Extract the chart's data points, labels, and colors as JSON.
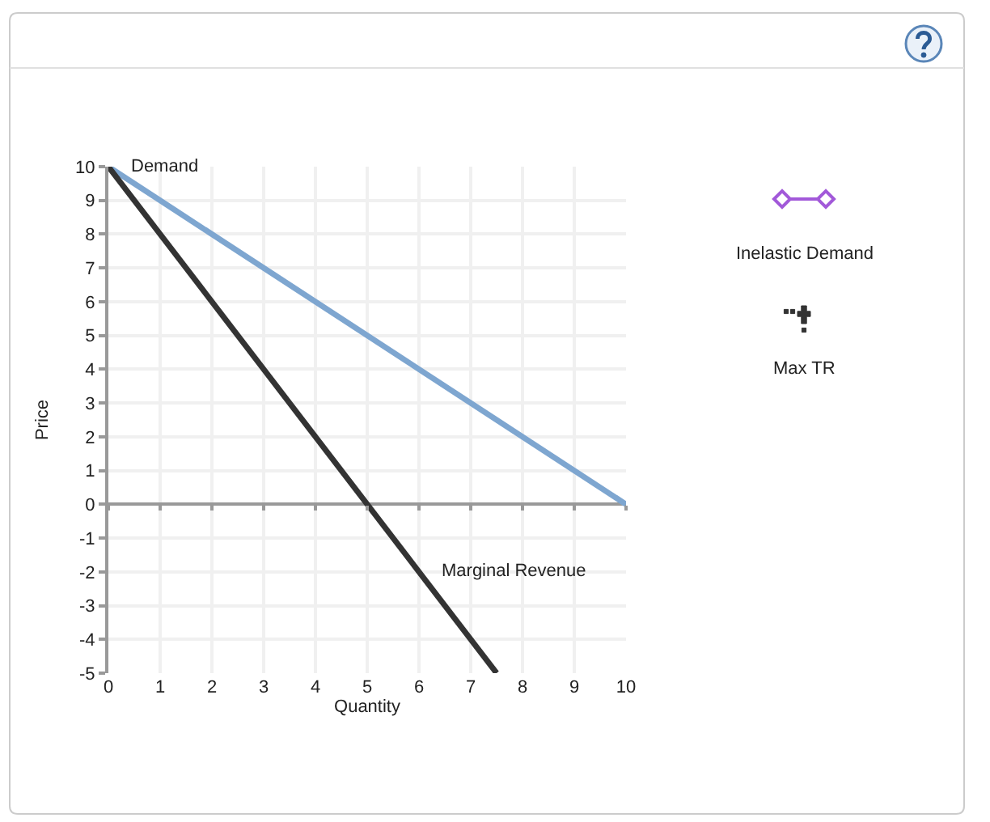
{
  "chart_data": {
    "type": "line",
    "xlabel": "Quantity",
    "ylabel": "Price",
    "series": [
      {
        "name": "Demand",
        "color": "#7ea6d0",
        "x": [
          0,
          10
        ],
        "values": [
          10,
          0
        ]
      },
      {
        "name": "Marginal Revenue",
        "color": "#333333",
        "x": [
          0,
          7.5
        ],
        "values": [
          10,
          -5
        ]
      }
    ],
    "xlim": [
      0,
      10
    ],
    "ylim": [
      -5,
      10
    ],
    "xticks": [
      0,
      1,
      2,
      3,
      4,
      5,
      6,
      7,
      8,
      9,
      10
    ],
    "yticks": [
      -5,
      -4,
      -3,
      -2,
      -1,
      0,
      1,
      2,
      3,
      4,
      5,
      6,
      7,
      8,
      9,
      10
    ],
    "grid": true,
    "line_style": "solid",
    "annotations": [
      "Inelastic Demand",
      "Max TR"
    ]
  }
}
